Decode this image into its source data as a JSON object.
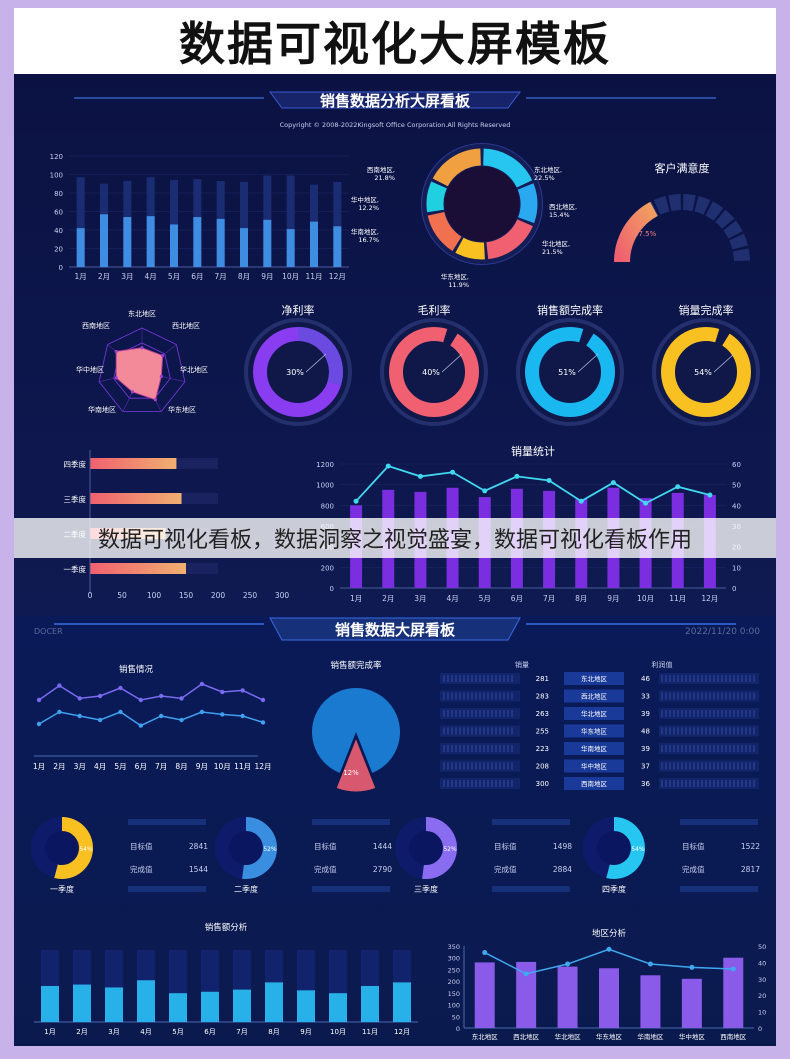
{
  "page_title": "数据可视化大屏模板",
  "watermark": "数据可视化看板，数据洞察之视觉盛宴，数据可视化看板作用",
  "panel1": {
    "title": "销售数据分析大屏看板",
    "copyright": "Copyright © 2008-2022Kingsoft Office Corporation.All Rights Reserved"
  },
  "panel2": {
    "title": "销售数据大屏看板",
    "brand": "DOCER",
    "date": "2022/11/20 0:00"
  },
  "colors": {
    "cyan": "#26c6f0",
    "purple": "#8a3cf0",
    "orange": "#f0a040",
    "pink": "#f06070",
    "yellow": "#f8c020",
    "blue": "#3a8ee0"
  },
  "chart_data": [
    {
      "id": "monthly-bars",
      "type": "bar",
      "categories": [
        "1月",
        "2月",
        "3月",
        "4月",
        "5月",
        "6月",
        "7月",
        "8月",
        "9月",
        "10月",
        "11月",
        "12月"
      ],
      "series": [
        {
          "values": [
            97,
            90,
            93,
            97,
            94,
            95,
            93,
            92,
            99,
            99,
            89,
            92
          ]
        },
        {
          "values": [
            42,
            57,
            54,
            55,
            46,
            54,
            52,
            42,
            51,
            41,
            49,
            44
          ]
        }
      ],
      "yticks": [
        "0",
        "20",
        "40",
        "60",
        "80",
        "100",
        "120"
      ],
      "ylim": [
        0,
        120
      ]
    },
    {
      "id": "region-donut",
      "type": "pie",
      "categories": [
        "东北地区",
        "西北地区",
        "华北地区",
        "华东地区",
        "华南地区",
        "华中地区",
        "西南地区"
      ],
      "labels": [
        "东北地区,\n22.5%",
        "西北地区,\n15.4%",
        "华北地区,\n21.5%",
        "华东地区,\n11.9%",
        "华南地区,\n16.7%",
        "华中地区,\n12.2%",
        "西南地区,\n21.8%"
      ],
      "values": [
        22.5,
        15.4,
        21.5,
        11.9,
        16.7,
        12.2,
        21.8
      ]
    },
    {
      "id": "satisfaction-gauge",
      "type": "gauge",
      "title": "客户满意度",
      "value": 17.5,
      "label": "17.5%"
    },
    {
      "id": "region-radar",
      "type": "radar",
      "categories": [
        "东北地区",
        "西北地区",
        "华北地区",
        "华东地区",
        "华南地区",
        "华中地区",
        "西南地区"
      ],
      "values": [
        0.55,
        0.6,
        0.45,
        0.7,
        0.5,
        0.6,
        0.75
      ]
    },
    {
      "id": "rate-rings",
      "type": "pie",
      "items": [
        {
          "title": "净利率",
          "value": 30,
          "label": "30%"
        },
        {
          "title": "毛利率",
          "value": 40,
          "label": "40%"
        },
        {
          "title": "销售额完成率",
          "value": 51,
          "label": "51%"
        },
        {
          "title": "销量完成率",
          "value": 54,
          "label": "54%"
        }
      ]
    },
    {
      "id": "quarter-hbars",
      "type": "bar",
      "categories": [
        "四季度",
        "三季度",
        "二季度",
        "一季度"
      ],
      "values": [
        135,
        143,
        118,
        150
      ],
      "xticks": [
        "0",
        "50",
        "100",
        "150",
        "200",
        "250",
        "300"
      ],
      "xlim": [
        0,
        300
      ]
    },
    {
      "id": "sales-volume",
      "type": "bar",
      "title": "销量统计",
      "categories": [
        "1月",
        "2月",
        "3月",
        "4月",
        "5月",
        "6月",
        "7月",
        "8月",
        "9月",
        "10月",
        "11月",
        "12月"
      ],
      "series": [
        {
          "values": [
            800,
            950,
            930,
            970,
            880,
            960,
            940,
            860,
            970,
            870,
            920,
            900
          ]
        },
        {
          "values": [
            42,
            59,
            54,
            56,
            47,
            54,
            52,
            42,
            51,
            41,
            49,
            45
          ]
        }
      ],
      "yticks_left": [
        "0",
        "200",
        "400",
        "600",
        "800",
        "1000",
        "1200"
      ],
      "yticks_right": [
        "0",
        "10",
        "20",
        "30",
        "40",
        "50",
        "60"
      ],
      "ylim": [
        0,
        1200
      ],
      "y2lim": [
        0,
        60
      ]
    },
    {
      "id": "sales-line",
      "type": "line",
      "title": "销售情况",
      "categories": [
        "1月",
        "2月",
        "3月",
        "4月",
        "5月",
        "6月",
        "7月",
        "8月",
        "9月",
        "10月",
        "11月",
        "12月"
      ],
      "series": [
        {
          "values": [
            70,
            88,
            72,
            75,
            85,
            70,
            75,
            72,
            90,
            80,
            82,
            70
          ]
        },
        {
          "values": [
            40,
            55,
            50,
            45,
            55,
            38,
            50,
            45,
            55,
            52,
            50,
            42
          ]
        }
      ],
      "ylim": [
        0,
        100
      ]
    },
    {
      "id": "completion-pie",
      "type": "pie",
      "title": "销售额完成率",
      "values": [
        88,
        12
      ],
      "label": "12%"
    },
    {
      "id": "region-table",
      "type": "table",
      "headers": [
        "销量",
        "",
        "利润值"
      ],
      "rows": [
        {
          "sales": "281",
          "region": "东北地区",
          "profit": "46"
        },
        {
          "sales": "283",
          "region": "西北地区",
          "profit": "33"
        },
        {
          "sales": "263",
          "region": "华北地区",
          "profit": "39"
        },
        {
          "sales": "255",
          "region": "华东地区",
          "profit": "48"
        },
        {
          "sales": "223",
          "region": "华南地区",
          "profit": "39"
        },
        {
          "sales": "208",
          "region": "华中地区",
          "profit": "37"
        },
        {
          "sales": "300",
          "region": "西南地区",
          "profit": "36"
        }
      ]
    },
    {
      "id": "quarter-targets",
      "type": "pie",
      "target_label": "目标值",
      "done_label": "完成值",
      "items": [
        {
          "title": "一季度",
          "value": 54,
          "label": "54%",
          "target": "2841",
          "done": "1544",
          "color": "#f8c020"
        },
        {
          "title": "二季度",
          "value": 52,
          "label": "52%",
          "target": "1444",
          "done": "2790",
          "color": "#3a8ee0"
        },
        {
          "title": "三季度",
          "value": 52,
          "label": "52%",
          "target": "1498",
          "done": "2884",
          "color": "#8a6cf0"
        },
        {
          "title": "四季度",
          "value": 54,
          "label": "54%",
          "target": "1522",
          "done": "2817",
          "color": "#26c6f0"
        }
      ]
    },
    {
      "id": "sales-amount",
      "type": "bar",
      "title": "销售额分析",
      "categories": [
        "1月",
        "2月",
        "3月",
        "4月",
        "5月",
        "6月",
        "7月",
        "8月",
        "9月",
        "10月",
        "11月",
        "12月"
      ],
      "values": [
        50,
        52,
        48,
        58,
        40,
        42,
        45,
        55,
        44,
        40,
        50,
        55
      ],
      "ylim": [
        0,
        100
      ]
    },
    {
      "id": "region-analysis",
      "type": "bar",
      "title": "地区分析",
      "categories": [
        "东北地区",
        "西北地区",
        "华北地区",
        "华东地区",
        "华南地区",
        "华中地区",
        "西南地区"
      ],
      "series": [
        {
          "values": [
            280,
            282,
            262,
            255,
            225,
            210,
            300
          ]
        },
        {
          "values": [
            46,
            33,
            39,
            48,
            39,
            37,
            36
          ]
        }
      ],
      "yticks_left": [
        "0",
        "50",
        "100",
        "150",
        "200",
        "250",
        "300",
        "350"
      ],
      "yticks_right": [
        "0",
        "10",
        "20",
        "30",
        "40",
        "50"
      ],
      "ylim": [
        0,
        350
      ],
      "y2lim": [
        0,
        50
      ]
    }
  ]
}
